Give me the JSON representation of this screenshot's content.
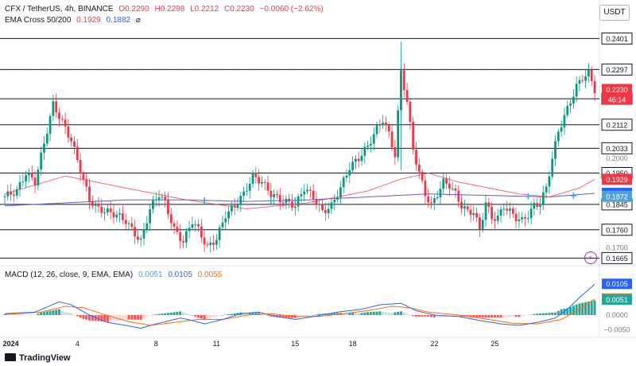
{
  "header": {
    "pair": "CFX / TetherUS, 4h, BINANCE",
    "open": "O0.2290",
    "high": "H0.2298",
    "low": "L0.2212",
    "close": "C0.2230",
    "change": "−0.0060 (−2.62%)",
    "ema_label": "EMA Cross 50/200",
    "ema50": "0.1929",
    "ema200": "0.1882",
    "ema_extra": "⌀"
  },
  "currency_button": "USDT",
  "countdown": "46:14",
  "brand": "TradingView",
  "macd_header": {
    "label": "MACD (12, 26, close, 9, EMA, EMA)",
    "hist": "0.0051",
    "macd": "0.0105",
    "signal": "0.0055"
  },
  "chart_data": {
    "type": "candlestick",
    "price_axis": {
      "min": 0.165,
      "max": 0.245,
      "ticks": [
        "0.2000",
        "0.1700"
      ]
    },
    "x_tick_labels": [
      "2024",
      "4",
      "8",
      "11",
      "15",
      "18",
      "22",
      "25"
    ],
    "levels": [
      {
        "value": 0.2401,
        "label": "0.2401"
      },
      {
        "value": 0.2297,
        "label": "0.2297"
      },
      {
        "value": 0.2199,
        "label": "0.2199"
      },
      {
        "value": 0.2112,
        "label": "0.2112"
      },
      {
        "value": 0.2033,
        "label": "0.2033"
      },
      {
        "value": 0.195,
        "label": "0.1950"
      },
      {
        "value": 0.1845,
        "label": "0.1845"
      },
      {
        "value": 0.176,
        "label": "0.1760"
      },
      {
        "value": 0.1665,
        "label": "0.1665"
      }
    ],
    "price_tags": [
      {
        "value": 0.223,
        "label": "0.2230",
        "color": "#f23645"
      },
      {
        "value": 0.1929,
        "label": "0.1929",
        "color": "#f23645"
      },
      {
        "value": 0.1882,
        "label": "0.1882",
        "color": "#2962ff"
      },
      {
        "value": 0.1872,
        "label": "0.1872",
        "color": "#4aa3df"
      }
    ],
    "close_path": [
      [
        0,
        0.1872
      ],
      [
        4,
        0.189
      ],
      [
        7,
        0.195
      ],
      [
        10,
        0.192
      ],
      [
        13,
        0.205
      ],
      [
        16,
        0.218
      ],
      [
        19,
        0.212
      ],
      [
        22,
        0.206
      ],
      [
        25,
        0.196
      ],
      [
        28,
        0.186
      ],
      [
        31,
        0.183
      ],
      [
        34,
        0.182
      ],
      [
        37,
        0.181
      ],
      [
        40,
        0.179
      ],
      [
        42,
        0.176
      ],
      [
        45,
        0.172
      ],
      [
        48,
        0.183
      ],
      [
        51,
        0.188
      ],
      [
        53,
        0.185
      ],
      [
        56,
        0.176
      ],
      [
        59,
        0.172
      ],
      [
        62,
        0.179
      ],
      [
        64,
        0.176
      ],
      [
        67,
        0.17
      ],
      [
        70,
        0.173
      ],
      [
        73,
        0.181
      ],
      [
        76,
        0.184
      ],
      [
        79,
        0.188
      ],
      [
        82,
        0.194
      ],
      [
        85,
        0.192
      ],
      [
        88,
        0.188
      ],
      [
        91,
        0.186
      ],
      [
        94,
        0.185
      ],
      [
        96,
        0.184
      ],
      [
        99,
        0.19
      ],
      [
        102,
        0.187
      ],
      [
        105,
        0.182
      ],
      [
        108,
        0.184
      ],
      [
        111,
        0.19
      ],
      [
        114,
        0.197
      ],
      [
        117,
        0.2
      ],
      [
        120,
        0.204
      ],
      [
        123,
        0.21
      ],
      [
        125,
        0.213
      ],
      [
        127,
        0.208
      ],
      [
        129,
        0.201
      ],
      [
        131,
        0.229
      ],
      [
        133,
        0.219
      ],
      [
        135,
        0.203
      ],
      [
        137,
        0.195
      ],
      [
        139,
        0.188
      ],
      [
        141,
        0.184
      ],
      [
        143,
        0.188
      ],
      [
        145,
        0.192
      ],
      [
        147,
        0.191
      ],
      [
        149,
        0.188
      ],
      [
        151,
        0.184
      ],
      [
        153,
        0.182
      ],
      [
        155,
        0.182
      ],
      [
        157,
        0.176
      ],
      [
        159,
        0.185
      ],
      [
        161,
        0.18
      ],
      [
        163,
        0.18
      ],
      [
        165,
        0.184
      ],
      [
        167,
        0.182
      ],
      [
        169,
        0.18
      ],
      [
        171,
        0.179
      ],
      [
        173,
        0.181
      ],
      [
        175,
        0.184
      ],
      [
        177,
        0.185
      ],
      [
        179,
        0.19
      ],
      [
        181,
        0.2
      ],
      [
        183,
        0.209
      ],
      [
        185,
        0.214
      ],
      [
        187,
        0.219
      ],
      [
        189,
        0.224
      ],
      [
        191,
        0.227
      ],
      [
        193,
        0.2285
      ],
      [
        195,
        0.223
      ]
    ],
    "ema50_path": [
      [
        0,
        0.188
      ],
      [
        20,
        0.194
      ],
      [
        40,
        0.19
      ],
      [
        60,
        0.186
      ],
      [
        80,
        0.183
      ],
      [
        100,
        0.185
      ],
      [
        120,
        0.189
      ],
      [
        131,
        0.193
      ],
      [
        140,
        0.195
      ],
      [
        150,
        0.192
      ],
      [
        160,
        0.19
      ],
      [
        170,
        0.188
      ],
      [
        180,
        0.187
      ],
      [
        190,
        0.19
      ],
      [
        195,
        0.1929
      ]
    ],
    "ema200_path": [
      [
        0,
        0.184
      ],
      [
        20,
        0.185
      ],
      [
        40,
        0.186
      ],
      [
        60,
        0.186
      ],
      [
        80,
        0.1855
      ],
      [
        100,
        0.186
      ],
      [
        120,
        0.187
      ],
      [
        140,
        0.188
      ],
      [
        160,
        0.1875
      ],
      [
        180,
        0.187
      ],
      [
        195,
        0.1882
      ]
    ],
    "cross_markers": [
      [
        66,
        0.1858
      ],
      [
        88,
        0.1857
      ],
      [
        96,
        0.1858
      ],
      [
        173,
        0.1872
      ],
      [
        188,
        0.1874
      ]
    ],
    "macd": {
      "range": [
        -0.0065,
        0.013
      ],
      "ticks": [
        "0.0000",
        "−0.0050"
      ],
      "tags": [
        {
          "value": 0.0105,
          "label": "0.0105",
          "color": "#2962ff"
        },
        {
          "value": 0.0055,
          "label": "0.0055",
          "color": "#ff6d00"
        },
        {
          "value": 0.0051,
          "label": "0.0051",
          "color": "#26a69a"
        }
      ],
      "macd_path": [
        [
          0,
          0.0005
        ],
        [
          10,
          0.001
        ],
        [
          18,
          0.0045
        ],
        [
          22,
          0.0035
        ],
        [
          28,
          0.0
        ],
        [
          34,
          -0.0025
        ],
        [
          40,
          -0.0035
        ],
        [
          45,
          -0.0045
        ],
        [
          50,
          -0.003
        ],
        [
          58,
          -0.001
        ],
        [
          62,
          -0.0018
        ],
        [
          66,
          -0.003
        ],
        [
          72,
          -0.0015
        ],
        [
          78,
          0.0005
        ],
        [
          84,
          0.001
        ],
        [
          90,
          -0.0005
        ],
        [
          96,
          -0.0015
        ],
        [
          102,
          -0.0005
        ],
        [
          110,
          0.001
        ],
        [
          118,
          0.002
        ],
        [
          124,
          0.0035
        ],
        [
          131,
          0.004
        ],
        [
          136,
          0.0015
        ],
        [
          142,
          0.0
        ],
        [
          150,
          -0.0005
        ],
        [
          158,
          -0.002
        ],
        [
          164,
          -0.003
        ],
        [
          170,
          -0.0035
        ],
        [
          176,
          -0.0025
        ],
        [
          182,
          -0.001
        ],
        [
          186,
          0.002
        ],
        [
          190,
          0.006
        ],
        [
          195,
          0.0105
        ]
      ],
      "signal_path": [
        [
          0,
          0.0002
        ],
        [
          12,
          0.001
        ],
        [
          20,
          0.003
        ],
        [
          26,
          0.0025
        ],
        [
          32,
          0.0005
        ],
        [
          40,
          -0.002
        ],
        [
          48,
          -0.0035
        ],
        [
          56,
          -0.0025
        ],
        [
          64,
          -0.0015
        ],
        [
          72,
          -0.0015
        ],
        [
          80,
          0.0
        ],
        [
          88,
          0.0005
        ],
        [
          96,
          -0.0005
        ],
        [
          104,
          -0.0005
        ],
        [
          112,
          0.0005
        ],
        [
          120,
          0.0015
        ],
        [
          128,
          0.003
        ],
        [
          134,
          0.0025
        ],
        [
          140,
          0.001
        ],
        [
          150,
          0.0
        ],
        [
          160,
          -0.0015
        ],
        [
          168,
          -0.0028
        ],
        [
          176,
          -0.003
        ],
        [
          184,
          -0.0015
        ],
        [
          190,
          0.002
        ],
        [
          195,
          0.0055
        ]
      ]
    }
  }
}
